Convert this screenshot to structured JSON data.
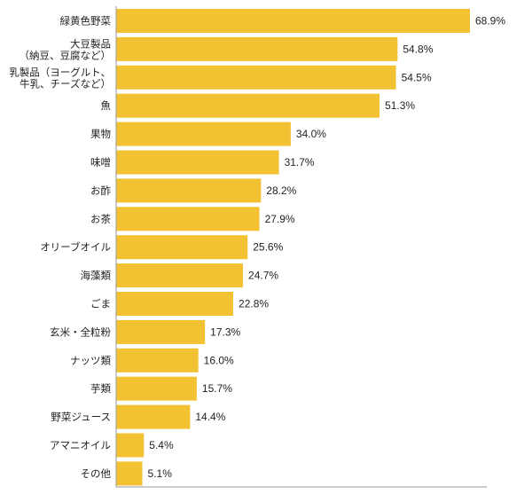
{
  "chart_data": {
    "type": "bar",
    "orientation": "horizontal",
    "title": "",
    "xlabel": "",
    "ylabel": "",
    "grid": false,
    "value_suffix": "%",
    "bar_color": "#F2C232",
    "axis_color": "#999999",
    "xlim": [
      0,
      80
    ],
    "categories": [
      [
        "緑黄色野菜"
      ],
      [
        "大豆製品",
        "（納豆、豆腐など）"
      ],
      [
        "乳製品（ヨーグルト、",
        "牛乳、チーズなど）"
      ],
      [
        "魚"
      ],
      [
        "果物"
      ],
      [
        "味噌"
      ],
      [
        "お酢"
      ],
      [
        "お茶"
      ],
      [
        "オリーブオイル"
      ],
      [
        "海藻類"
      ],
      [
        "ごま"
      ],
      [
        "玄米・全粒粉"
      ],
      [
        "ナッツ類"
      ],
      [
        "芋類"
      ],
      [
        "野菜ジュース"
      ],
      [
        "アマニオイル"
      ],
      [
        "その他"
      ]
    ],
    "values": [
      68.9,
      54.8,
      54.5,
      51.3,
      34.0,
      31.7,
      28.2,
      27.9,
      25.6,
      24.7,
      22.8,
      17.3,
      16.0,
      15.7,
      14.4,
      5.4,
      5.1
    ],
    "data_labels": [
      "68.9%",
      "54.8%",
      "54.5%",
      "51.3%",
      "34.0%",
      "31.7%",
      "28.2%",
      "27.9%",
      "25.6%",
      "24.7%",
      "22.8%",
      "17.3%",
      "16.0%",
      "15.7%",
      "14.4%",
      "5.4%",
      "5.1%"
    ]
  }
}
